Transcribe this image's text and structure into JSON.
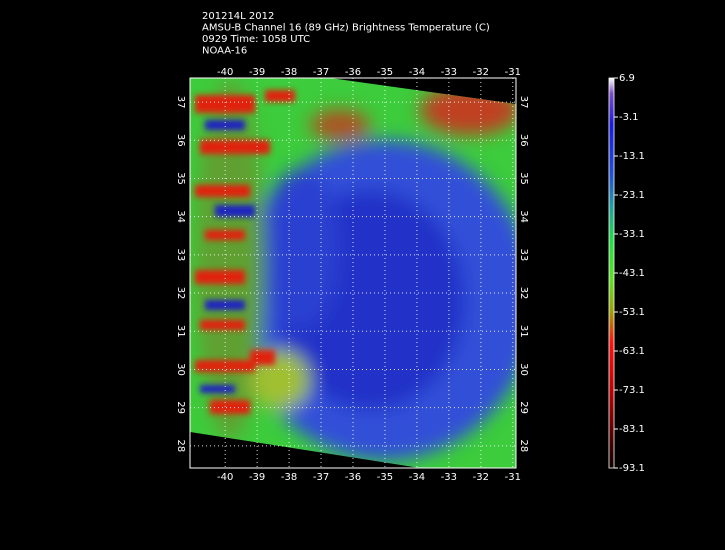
{
  "header": {
    "lines": [
      "201214L 2012",
      "AMSU-B Channel 16 (89 GHz) Brightness Temperature (C)",
      "0929 Time: 1058 UTC",
      "NOAA-16"
    ]
  },
  "map": {
    "lonlim": [
      -41.1,
      -30.9
    ],
    "latlim": [
      27.42,
      37.63
    ],
    "lon_ticks": [
      -40,
      -39,
      -38,
      -37,
      -36,
      -35,
      -34,
      -33,
      -32,
      -31
    ],
    "lat_ticks": [
      28,
      29,
      30,
      31,
      32,
      33,
      34,
      35,
      36,
      37
    ]
  },
  "colorbar": {
    "lim": [
      -93.1,
      6.9
    ],
    "ticks": [
      6.9,
      -3.1,
      -13.1,
      -23.1,
      -33.1,
      -43.1,
      -53.1,
      -63.1,
      -73.1,
      -83.1,
      -93.1
    ]
  }
}
